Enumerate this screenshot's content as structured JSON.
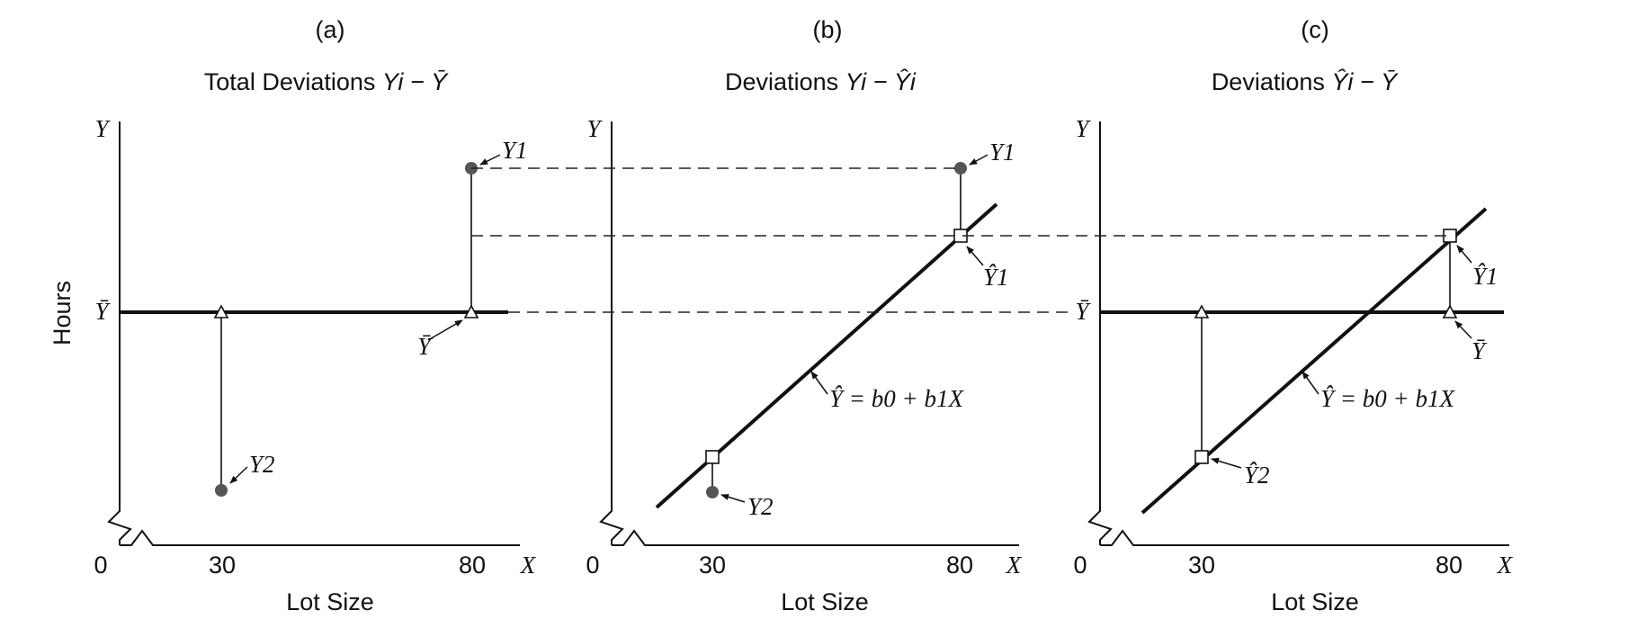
{
  "panels": [
    {
      "letter": "(a)",
      "title_text": "Total Deviations ",
      "title_math": "Yi − Ȳ"
    },
    {
      "letter": "(b)",
      "title_text": "Deviations ",
      "title_math": "Yi − Ŷi"
    },
    {
      "letter": "(c)",
      "title_text": "Deviations ",
      "title_math": "Ŷi − Ȳ"
    }
  ],
  "axes": {
    "y_axis_symbol": "Y",
    "x_axis_symbol": "X",
    "origin_label": "0",
    "x_tick_1": "30",
    "x_tick_2": "80",
    "x_title": "Lot Size",
    "y_title": "Hours",
    "ybar_label": "Ȳ"
  },
  "point_labels": {
    "y1": "Y1",
    "y2": "Y2",
    "yhat1": "Ŷ1",
    "yhat2": "Ŷ2",
    "ybar": "Ȳ",
    "regression_line": "Ŷ = b0 + b1X"
  },
  "colors": {
    "ink": "#111111",
    "observed_point": "#555555",
    "dashed": "#222222"
  }
}
